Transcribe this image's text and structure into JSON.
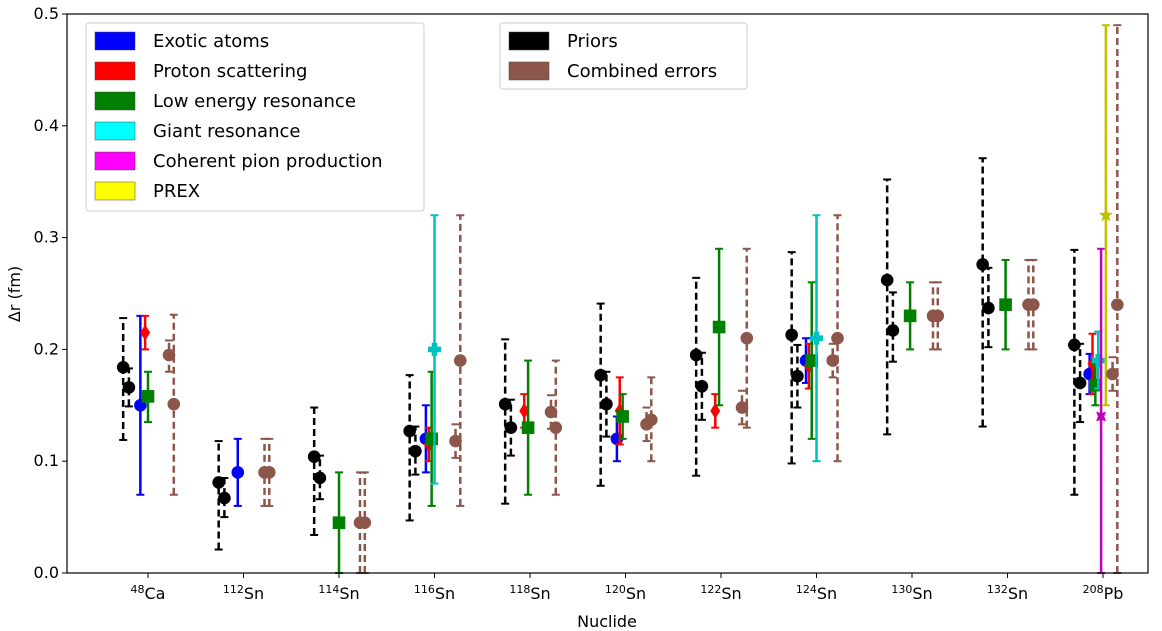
{
  "chart_data": {
    "type": "scatter",
    "xlabel": "Nuclide",
    "ylabel": "Δr (fm)",
    "ylim": [
      0.0,
      0.5
    ],
    "yticks": [
      "0.0",
      "0.1",
      "0.2",
      "0.3",
      "0.4",
      "0.5"
    ],
    "grid": false,
    "categories": [
      {
        "sup": "48",
        "base": "Ca"
      },
      {
        "sup": "112",
        "base": "Sn"
      },
      {
        "sup": "114",
        "base": "Sn"
      },
      {
        "sup": "116",
        "base": "Sn"
      },
      {
        "sup": "118",
        "base": "Sn"
      },
      {
        "sup": "120",
        "base": "Sn"
      },
      {
        "sup": "122",
        "base": "Sn"
      },
      {
        "sup": "124",
        "base": "Sn"
      },
      {
        "sup": "130",
        "base": "Sn"
      },
      {
        "sup": "132",
        "base": "Sn"
      },
      {
        "sup": "208",
        "base": "Pb"
      }
    ],
    "legend_left": {
      "position": "top-left",
      "entries": [
        {
          "label": "Exotic atoms",
          "color": "#0000ff"
        },
        {
          "label": "Proton scattering",
          "color": "#ff0000"
        },
        {
          "label": "Low energy resonance",
          "color": "#008000"
        },
        {
          "label": "Giant resonance",
          "color": "#00ffff"
        },
        {
          "label": "Coherent pion production",
          "color": "#ff00ff"
        },
        {
          "label": "PREX",
          "color": "#ffff00"
        }
      ]
    },
    "legend_right": {
      "position": "top-center",
      "entries": [
        {
          "label": "Priors",
          "color": "#000000"
        },
        {
          "label": "Combined errors",
          "color": "#8c564b"
        }
      ]
    },
    "colors": {
      "exotic": "#0000ff",
      "proton": "#ff0000",
      "low": "#008000",
      "giant": "#00bfbf",
      "pion": "#bf00bf",
      "prex": "#bfbf00",
      "priors": "#000000",
      "combined": "#8c564b"
    },
    "points": [
      {
        "cat": 0,
        "kind": "priors",
        "dx": -0.26,
        "y": 0.184,
        "lo": 0.119,
        "hi": 0.228
      },
      {
        "cat": 0,
        "kind": "priors",
        "dx": -0.2,
        "y": 0.166,
        "lo": 0.149,
        "hi": 0.183
      },
      {
        "cat": 0,
        "kind": "exotic",
        "dx": -0.08,
        "y": 0.15,
        "lo": 0.07,
        "hi": 0.23
      },
      {
        "cat": 0,
        "kind": "proton",
        "dx": -0.03,
        "y": 0.215,
        "lo": 0.2,
        "hi": 0.23
      },
      {
        "cat": 0,
        "kind": "low",
        "dx": 0.0,
        "y": 0.158,
        "lo": 0.135,
        "hi": 0.18
      },
      {
        "cat": 0,
        "kind": "combined",
        "dx": 0.22,
        "y": 0.195,
        "lo": 0.18,
        "hi": 0.208
      },
      {
        "cat": 0,
        "kind": "combined",
        "dx": 0.27,
        "y": 0.151,
        "lo": 0.07,
        "hi": 0.231
      },
      {
        "cat": 1,
        "kind": "priors",
        "dx": -0.26,
        "y": 0.081,
        "lo": 0.021,
        "hi": 0.118
      },
      {
        "cat": 1,
        "kind": "priors",
        "dx": -0.2,
        "y": 0.067,
        "lo": 0.05,
        "hi": 0.085
      },
      {
        "cat": 1,
        "kind": "exotic",
        "dx": -0.06,
        "y": 0.09,
        "lo": 0.06,
        "hi": 0.12
      },
      {
        "cat": 1,
        "kind": "combined",
        "dx": 0.22,
        "y": 0.09,
        "lo": 0.06,
        "hi": 0.12
      },
      {
        "cat": 1,
        "kind": "combined",
        "dx": 0.27,
        "y": 0.09,
        "lo": 0.06,
        "hi": 0.12
      },
      {
        "cat": 2,
        "kind": "priors",
        "dx": -0.26,
        "y": 0.104,
        "lo": 0.034,
        "hi": 0.148
      },
      {
        "cat": 2,
        "kind": "priors",
        "dx": -0.2,
        "y": 0.085,
        "lo": 0.066,
        "hi": 0.105
      },
      {
        "cat": 2,
        "kind": "low",
        "dx": 0.0,
        "y": 0.045,
        "lo": 0.0,
        "hi": 0.09
      },
      {
        "cat": 2,
        "kind": "combined",
        "dx": 0.22,
        "y": 0.045,
        "lo": 0.0,
        "hi": 0.09
      },
      {
        "cat": 2,
        "kind": "combined",
        "dx": 0.27,
        "y": 0.045,
        "lo": 0.0,
        "hi": 0.09
      },
      {
        "cat": 3,
        "kind": "priors",
        "dx": -0.26,
        "y": 0.127,
        "lo": 0.047,
        "hi": 0.177
      },
      {
        "cat": 3,
        "kind": "priors",
        "dx": -0.2,
        "y": 0.109,
        "lo": 0.088,
        "hi": 0.131
      },
      {
        "cat": 3,
        "kind": "exotic",
        "dx": -0.09,
        "y": 0.12,
        "lo": 0.09,
        "hi": 0.15
      },
      {
        "cat": 3,
        "kind": "proton",
        "dx": -0.06,
        "y": 0.115,
        "lo": 0.1,
        "hi": 0.13
      },
      {
        "cat": 3,
        "kind": "low",
        "dx": -0.03,
        "y": 0.12,
        "lo": 0.06,
        "hi": 0.18
      },
      {
        "cat": 3,
        "kind": "giant",
        "dx": 0.0,
        "y": 0.2,
        "lo": 0.08,
        "hi": 0.32
      },
      {
        "cat": 3,
        "kind": "combined",
        "dx": 0.22,
        "y": 0.118,
        "lo": 0.103,
        "hi": 0.133
      },
      {
        "cat": 3,
        "kind": "combined",
        "dx": 0.27,
        "y": 0.19,
        "lo": 0.06,
        "hi": 0.32
      },
      {
        "cat": 4,
        "kind": "priors",
        "dx": -0.26,
        "y": 0.151,
        "lo": 0.062,
        "hi": 0.209
      },
      {
        "cat": 4,
        "kind": "priors",
        "dx": -0.2,
        "y": 0.13,
        "lo": 0.105,
        "hi": 0.155
      },
      {
        "cat": 4,
        "kind": "proton",
        "dx": -0.06,
        "y": 0.145,
        "lo": 0.13,
        "hi": 0.16
      },
      {
        "cat": 4,
        "kind": "low",
        "dx": -0.02,
        "y": 0.13,
        "lo": 0.07,
        "hi": 0.19
      },
      {
        "cat": 4,
        "kind": "combined",
        "dx": 0.22,
        "y": 0.144,
        "lo": 0.129,
        "hi": 0.159
      },
      {
        "cat": 4,
        "kind": "combined",
        "dx": 0.27,
        "y": 0.13,
        "lo": 0.07,
        "hi": 0.19
      },
      {
        "cat": 5,
        "kind": "priors",
        "dx": -0.26,
        "y": 0.177,
        "lo": 0.078,
        "hi": 0.241
      },
      {
        "cat": 5,
        "kind": "priors",
        "dx": -0.2,
        "y": 0.151,
        "lo": 0.122,
        "hi": 0.18
      },
      {
        "cat": 5,
        "kind": "exotic",
        "dx": -0.09,
        "y": 0.12,
        "lo": 0.1,
        "hi": 0.14
      },
      {
        "cat": 5,
        "kind": "proton",
        "dx": -0.06,
        "y": 0.145,
        "lo": 0.115,
        "hi": 0.175
      },
      {
        "cat": 5,
        "kind": "low",
        "dx": -0.03,
        "y": 0.14,
        "lo": 0.12,
        "hi": 0.16
      },
      {
        "cat": 5,
        "kind": "combined",
        "dx": 0.22,
        "y": 0.133,
        "lo": 0.118,
        "hi": 0.148
      },
      {
        "cat": 5,
        "kind": "combined",
        "dx": 0.27,
        "y": 0.137,
        "lo": 0.1,
        "hi": 0.175
      },
      {
        "cat": 6,
        "kind": "priors",
        "dx": -0.26,
        "y": 0.195,
        "lo": 0.087,
        "hi": 0.264
      },
      {
        "cat": 6,
        "kind": "priors",
        "dx": -0.2,
        "y": 0.167,
        "lo": 0.137,
        "hi": 0.197
      },
      {
        "cat": 6,
        "kind": "proton",
        "dx": -0.06,
        "y": 0.145,
        "lo": 0.13,
        "hi": 0.16
      },
      {
        "cat": 6,
        "kind": "low",
        "dx": -0.02,
        "y": 0.22,
        "lo": 0.15,
        "hi": 0.29
      },
      {
        "cat": 6,
        "kind": "combined",
        "dx": 0.22,
        "y": 0.148,
        "lo": 0.133,
        "hi": 0.163
      },
      {
        "cat": 6,
        "kind": "combined",
        "dx": 0.27,
        "y": 0.21,
        "lo": 0.13,
        "hi": 0.29
      },
      {
        "cat": 7,
        "kind": "priors",
        "dx": -0.26,
        "y": 0.213,
        "lo": 0.098,
        "hi": 0.287
      },
      {
        "cat": 7,
        "kind": "priors",
        "dx": -0.2,
        "y": 0.176,
        "lo": 0.148,
        "hi": 0.204
      },
      {
        "cat": 7,
        "kind": "exotic",
        "dx": -0.11,
        "y": 0.19,
        "lo": 0.17,
        "hi": 0.21
      },
      {
        "cat": 7,
        "kind": "proton",
        "dx": -0.08,
        "y": 0.185,
        "lo": 0.165,
        "hi": 0.205
      },
      {
        "cat": 7,
        "kind": "low",
        "dx": -0.05,
        "y": 0.19,
        "lo": 0.12,
        "hi": 0.26
      },
      {
        "cat": 7,
        "kind": "giant",
        "dx": 0.0,
        "y": 0.21,
        "lo": 0.1,
        "hi": 0.32
      },
      {
        "cat": 7,
        "kind": "combined",
        "dx": 0.17,
        "y": 0.19,
        "lo": 0.175,
        "hi": 0.205
      },
      {
        "cat": 7,
        "kind": "combined",
        "dx": 0.22,
        "y": 0.21,
        "lo": 0.1,
        "hi": 0.32
      },
      {
        "cat": 8,
        "kind": "priors",
        "dx": -0.26,
        "y": 0.262,
        "lo": 0.124,
        "hi": 0.352
      },
      {
        "cat": 8,
        "kind": "priors",
        "dx": -0.2,
        "y": 0.217,
        "lo": 0.189,
        "hi": 0.251
      },
      {
        "cat": 8,
        "kind": "low",
        "dx": -0.02,
        "y": 0.23,
        "lo": 0.2,
        "hi": 0.26
      },
      {
        "cat": 8,
        "kind": "combined",
        "dx": 0.22,
        "y": 0.23,
        "lo": 0.2,
        "hi": 0.26
      },
      {
        "cat": 8,
        "kind": "combined",
        "dx": 0.27,
        "y": 0.23,
        "lo": 0.2,
        "hi": 0.26
      },
      {
        "cat": 9,
        "kind": "priors",
        "dx": -0.26,
        "y": 0.276,
        "lo": 0.131,
        "hi": 0.371
      },
      {
        "cat": 9,
        "kind": "priors",
        "dx": -0.2,
        "y": 0.237,
        "lo": 0.202,
        "hi": 0.273
      },
      {
        "cat": 9,
        "kind": "low",
        "dx": -0.02,
        "y": 0.24,
        "lo": 0.2,
        "hi": 0.28
      },
      {
        "cat": 9,
        "kind": "combined",
        "dx": 0.22,
        "y": 0.24,
        "lo": 0.2,
        "hi": 0.28
      },
      {
        "cat": 9,
        "kind": "combined",
        "dx": 0.27,
        "y": 0.24,
        "lo": 0.2,
        "hi": 0.28
      },
      {
        "cat": 10,
        "kind": "priors",
        "dx": -0.3,
        "y": 0.204,
        "lo": 0.07,
        "hi": 0.289
      },
      {
        "cat": 10,
        "kind": "priors",
        "dx": -0.24,
        "y": 0.17,
        "lo": 0.135,
        "hi": 0.205
      },
      {
        "cat": 10,
        "kind": "exotic",
        "dx": -0.14,
        "y": 0.178,
        "lo": 0.16,
        "hi": 0.196
      },
      {
        "cat": 10,
        "kind": "proton",
        "dx": -0.11,
        "y": 0.187,
        "lo": 0.16,
        "hi": 0.214
      },
      {
        "cat": 10,
        "kind": "low",
        "dx": -0.08,
        "y": 0.168,
        "lo": 0.15,
        "hi": 0.186
      },
      {
        "cat": 10,
        "kind": "giant",
        "dx": -0.05,
        "y": 0.19,
        "lo": 0.165,
        "hi": 0.216
      },
      {
        "cat": 10,
        "kind": "pion",
        "dx": -0.02,
        "y": 0.14,
        "lo": 0.0,
        "hi": 0.29
      },
      {
        "cat": 10,
        "kind": "prex",
        "dx": 0.03,
        "y": 0.32,
        "lo": 0.15,
        "hi": 0.49
      },
      {
        "cat": 10,
        "kind": "combined",
        "dx": 0.1,
        "y": 0.178,
        "lo": 0.163,
        "hi": 0.193
      },
      {
        "cat": 10,
        "kind": "combined",
        "dx": 0.15,
        "y": 0.24,
        "lo": 0.0,
        "hi": 0.49
      }
    ]
  }
}
